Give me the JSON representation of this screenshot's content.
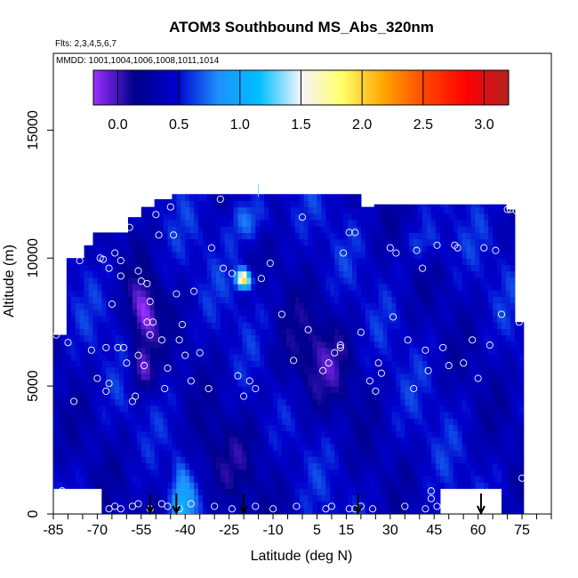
{
  "chart_data": {
    "type": "heatmap",
    "title": "ATOM3 Southbound MS_Abs_320nm",
    "subtitle_flights": "Flts: 2,3,4,5,6,7",
    "subtitle_dates": "MMDD: 1001,1004,1006,1008,1011,1014",
    "xlabel": "Latitude (deg N)",
    "ylabel": "Altitude (m)",
    "xlim": [
      -85,
      85
    ],
    "ylim": [
      0,
      18000
    ],
    "x_ticks": [
      -85,
      -70,
      -55,
      -40,
      -25,
      -10,
      5,
      15,
      30,
      45,
      60,
      75
    ],
    "y_ticks": [
      0,
      5000,
      10000,
      15000
    ],
    "colorbar": {
      "range": [
        -0.2,
        3.2
      ],
      "ticks": [
        0.0,
        0.5,
        1.0,
        1.5,
        2.0,
        2.5,
        3.0
      ],
      "tick_labels": [
        "0.0",
        "0.5",
        "1.0",
        "1.5",
        "2.0",
        "2.5",
        "3.0"
      ],
      "colors": [
        "#9b30ff",
        "#00008b",
        "#0000cd",
        "#1e90ff",
        "#00bfff",
        "#f5f5ff",
        "#ffff66",
        "#ffa500",
        "#ff4500",
        "#ff0000",
        "#b22222"
      ]
    },
    "field_notes": "background mostly 0.2-0.6 with bright patches near -40 lat surface (~1.2) and -20 lat 9000 m (~2.0)",
    "profile_arrows_lat": [
      -52,
      -43,
      -20,
      19,
      61
    ],
    "sample_points": [
      [
        -84,
        7000
      ],
      [
        -82,
        9900
      ],
      [
        -80,
        6700
      ],
      [
        -78,
        4400
      ],
      [
        -76,
        9900
      ],
      [
        -72,
        6400
      ],
      [
        -70,
        5300
      ],
      [
        -69,
        10000
      ],
      [
        -68,
        9950
      ],
      [
        -67,
        6500
      ],
      [
        -67,
        4800
      ],
      [
        -66,
        5100
      ],
      [
        -66,
        9600
      ],
      [
        -65,
        8200
      ],
      [
        -64,
        10200
      ],
      [
        -63,
        6500
      ],
      [
        -62,
        9900
      ],
      [
        -62,
        9300
      ],
      [
        -61,
        6500
      ],
      [
        -60,
        5900
      ],
      [
        -59,
        11200
      ],
      [
        -58,
        4400
      ],
      [
        -57,
        4600
      ],
      [
        -56,
        6200
      ],
      [
        -56,
        9500
      ],
      [
        -55,
        9100
      ],
      [
        -54,
        5800
      ],
      [
        -53,
        9000
      ],
      [
        -53,
        7500
      ],
      [
        -52,
        7000
      ],
      [
        -52,
        8300
      ],
      [
        -51,
        7500
      ],
      [
        -50,
        11700
      ],
      [
        -49,
        10900
      ],
      [
        -48,
        6800
      ],
      [
        -47,
        4900
      ],
      [
        -46,
        5700
      ],
      [
        -45,
        12000
      ],
      [
        -44,
        10900
      ],
      [
        -43,
        8600
      ],
      [
        -42,
        6800
      ],
      [
        -41,
        7400
      ],
      [
        -40,
        6200
      ],
      [
        -38,
        5200
      ],
      [
        -37,
        8700
      ],
      [
        -35,
        6300
      ],
      [
        -32,
        4900
      ],
      [
        -31,
        10400
      ],
      [
        -27,
        9600
      ],
      [
        -24,
        9400
      ],
      [
        -22,
        5400
      ],
      [
        -20,
        4600
      ],
      [
        -18,
        5200
      ],
      [
        -16,
        4900
      ],
      [
        -14,
        9200
      ],
      [
        -11,
        9800
      ],
      [
        -7,
        7800
      ],
      [
        -3,
        6000
      ],
      [
        0,
        11600
      ],
      [
        2,
        7200
      ],
      [
        7,
        5600
      ],
      [
        9,
        5900
      ],
      [
        11,
        6300
      ],
      [
        13,
        6500
      ],
      [
        13,
        6600
      ],
      [
        14,
        10200
      ],
      [
        16,
        11000
      ],
      [
        18,
        11000
      ],
      [
        20,
        7100
      ],
      [
        23,
        5200
      ],
      [
        25,
        4800
      ],
      [
        26,
        5900
      ],
      [
        27,
        5500
      ],
      [
        30,
        10400
      ],
      [
        31,
        7700
      ],
      [
        32,
        10200
      ],
      [
        36,
        6800
      ],
      [
        38,
        4900
      ],
      [
        39,
        10300
      ],
      [
        41,
        9600
      ],
      [
        42,
        6400
      ],
      [
        43,
        5600
      ],
      [
        46,
        10500
      ],
      [
        48,
        6500
      ],
      [
        50,
        5800
      ],
      [
        52,
        10500
      ],
      [
        53,
        10400
      ],
      [
        55,
        5900
      ],
      [
        58,
        6800
      ],
      [
        60,
        5300
      ],
      [
        62,
        10400
      ],
      [
        64,
        6600
      ],
      [
        66,
        10300
      ],
      [
        68,
        7800
      ],
      [
        70,
        11900
      ],
      [
        71,
        11900
      ],
      [
        73,
        11850
      ],
      [
        74,
        7500
      ],
      [
        75,
        1400
      ],
      [
        -82,
        900
      ],
      [
        -73,
        300
      ],
      [
        -70,
        400
      ],
      [
        -66,
        200
      ],
      [
        -64,
        300
      ],
      [
        -62,
        200
      ],
      [
        -58,
        300
      ],
      [
        -56,
        400
      ],
      [
        -52,
        200
      ],
      [
        -48,
        400
      ],
      [
        -46,
        300
      ],
      [
        -42,
        200
      ],
      [
        -38,
        400
      ],
      [
        -30,
        300
      ],
      [
        -24,
        200
      ],
      [
        -16,
        300
      ],
      [
        -10,
        200
      ],
      [
        -2,
        300
      ],
      [
        8,
        200
      ],
      [
        10,
        300
      ],
      [
        16,
        200
      ],
      [
        18,
        200
      ],
      [
        20,
        300
      ],
      [
        24,
        200
      ],
      [
        35,
        300
      ],
      [
        42,
        200
      ],
      [
        44,
        900
      ],
      [
        44,
        600
      ],
      [
        46,
        300
      ],
      [
        54,
        300
      ],
      [
        58,
        200
      ],
      [
        62,
        600
      ],
      [
        -28,
        12300
      ],
      [
        40,
        12400
      ]
    ]
  }
}
